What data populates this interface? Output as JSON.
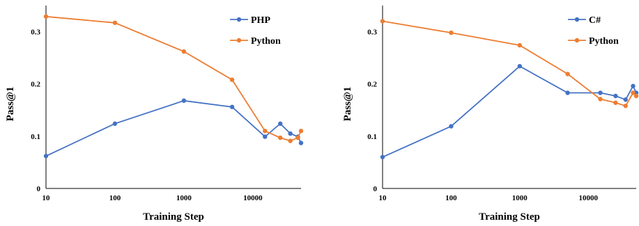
{
  "chart_data": [
    {
      "type": "line",
      "xlabel": "Training Step",
      "ylabel": "Pass@1",
      "x_scale": "log",
      "xlim": [
        10,
        50000
      ],
      "ylim": [
        0,
        0.35
      ],
      "x_ticks": [
        "10",
        "100",
        "1000",
        "10000"
      ],
      "y_ticks": [
        "0",
        "0.1",
        "0.2",
        "0.3"
      ],
      "grid": false,
      "legend_position": "top-right",
      "series": [
        {
          "name": "PHP",
          "color": "#4472C4",
          "x": [
            10,
            100,
            1000,
            5000,
            15000,
            25000,
            35000,
            45000,
            50000
          ],
          "y": [
            0.062,
            0.124,
            0.168,
            0.156,
            0.099,
            0.124,
            0.105,
            0.099,
            0.087
          ]
        },
        {
          "name": "Python",
          "color": "#ED7D31",
          "x": [
            10,
            100,
            1000,
            5000,
            15000,
            25000,
            35000,
            45000,
            50000
          ],
          "y": [
            0.329,
            0.317,
            0.262,
            0.208,
            0.11,
            0.097,
            0.091,
            0.097,
            0.11
          ]
        }
      ]
    },
    {
      "type": "line",
      "xlabel": "Training Step",
      "ylabel": "Pass@1",
      "x_scale": "log",
      "xlim": [
        10,
        50000
      ],
      "ylim": [
        0,
        0.35
      ],
      "x_ticks": [
        "10",
        "100",
        "1000",
        "10000"
      ],
      "y_ticks": [
        "0",
        "0.1",
        "0.2",
        "0.3"
      ],
      "grid": false,
      "legend_position": "top-right",
      "series": [
        {
          "name": "C#",
          "color": "#4472C4",
          "x": [
            10,
            100,
            1000,
            5000,
            15000,
            25000,
            35000,
            45000,
            50000
          ],
          "y": [
            0.06,
            0.119,
            0.234,
            0.183,
            0.183,
            0.177,
            0.17,
            0.196,
            0.183
          ]
        },
        {
          "name": "Python",
          "color": "#ED7D31",
          "x": [
            10,
            100,
            1000,
            5000,
            15000,
            25000,
            35000,
            45000,
            50000
          ],
          "y": [
            0.32,
            0.298,
            0.274,
            0.219,
            0.171,
            0.164,
            0.158,
            0.183,
            0.177
          ]
        }
      ]
    }
  ]
}
